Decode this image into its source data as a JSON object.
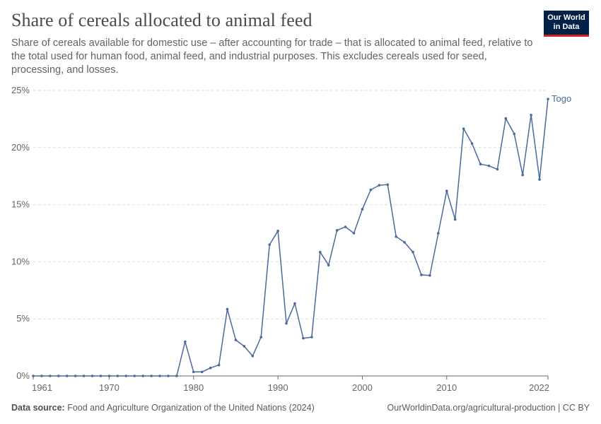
{
  "header": {
    "title": "Share of cereals allocated to animal feed",
    "subtitle": "Share of cereals available for domestic use – after accounting for trade – that is allocated to animal feed, relative to the total used for human food, animal feed, and industrial purposes. This excludes cereals used for seed, processing, and losses.",
    "logo_line1": "Our World",
    "logo_line2": "in Data"
  },
  "footer": {
    "source_label": "Data source:",
    "source_text": "Food and Agriculture Organization of the United Nations (2024)",
    "right_text": "OurWorldinData.org/agricultural-production | CC BY"
  },
  "colors": {
    "series": "#4c6a9c",
    "grid": "#dddddd",
    "axis": "#666666",
    "logo_bg": "#002147",
    "logo_accent": "#ce261e"
  },
  "chart_data": {
    "type": "line",
    "title": "Share of cereals allocated to animal feed",
    "xlabel": "",
    "ylabel": "",
    "xlim": [
      1961,
      2022
    ],
    "ylim": [
      0,
      25
    ],
    "y_ticks": [
      "0%",
      "5%",
      "10%",
      "15%",
      "20%",
      "25%"
    ],
    "y_tick_values": [
      0,
      5,
      10,
      15,
      20,
      25
    ],
    "x_ticks": [
      "1961",
      "1970",
      "1980",
      "1990",
      "2000",
      "2010",
      "2022"
    ],
    "x_tick_values": [
      1961,
      1970,
      1980,
      1990,
      2000,
      2010,
      2022
    ],
    "grid": true,
    "legend_placement": "end-of-line label",
    "series": [
      {
        "name": "Togo",
        "x": [
          1961,
          1962,
          1963,
          1964,
          1965,
          1966,
          1967,
          1968,
          1969,
          1970,
          1971,
          1972,
          1973,
          1974,
          1975,
          1976,
          1977,
          1978,
          1979,
          1980,
          1981,
          1982,
          1983,
          1984,
          1985,
          1986,
          1987,
          1988,
          1989,
          1990,
          1991,
          1992,
          1993,
          1994,
          1995,
          1996,
          1997,
          1998,
          1999,
          2000,
          2001,
          2002,
          2003,
          2004,
          2005,
          2006,
          2007,
          2008,
          2009,
          2010,
          2011,
          2012,
          2013,
          2014,
          2015,
          2016,
          2017,
          2018,
          2019,
          2020,
          2021,
          2022
        ],
        "values": [
          0,
          0,
          0,
          0,
          0,
          0,
          0,
          0,
          0,
          0,
          0,
          0,
          0,
          0,
          0,
          0,
          0,
          0,
          3.0,
          0.35,
          0.35,
          0.7,
          0.95,
          5.85,
          3.15,
          2.6,
          1.75,
          3.4,
          11.5,
          12.7,
          4.6,
          6.35,
          3.3,
          3.4,
          10.85,
          9.7,
          12.75,
          13.05,
          12.5,
          14.6,
          16.3,
          16.7,
          16.75,
          12.2,
          11.7,
          10.85,
          8.85,
          8.8,
          12.5,
          16.2,
          13.7,
          21.65,
          20.35,
          18.55,
          18.4,
          18.1,
          22.55,
          21.2,
          17.6,
          22.85,
          17.2,
          24.25
        ]
      }
    ]
  }
}
